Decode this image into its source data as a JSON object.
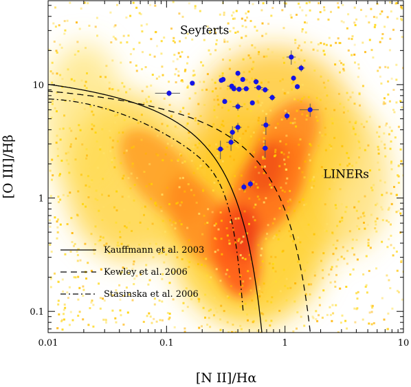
{
  "chart_data": {
    "type": "scatter",
    "xlabel": "[N II]/Hα",
    "ylabel": "[O III]/Hβ",
    "xscale": "log",
    "yscale": "log",
    "xlim": [
      0.01,
      10
    ],
    "ylim": [
      0.065,
      55
    ],
    "xticks": [
      {
        "value": 0.01,
        "label": "0.01"
      },
      {
        "value": 0.1,
        "label": "0.1"
      },
      {
        "value": 1,
        "label": "1"
      },
      {
        "value": 10,
        "label": "10"
      }
    ],
    "yticks": [
      {
        "value": 0.1,
        "label": "0.1"
      },
      {
        "value": 1,
        "label": "1"
      },
      {
        "value": 10,
        "label": "10"
      }
    ],
    "annotations": [
      {
        "text": "Seyferts",
        "x": 0.13,
        "y": 28
      },
      {
        "text": "LINERs",
        "x": 2.1,
        "y": 1.5
      }
    ],
    "background": "density map of emission-line galaxies (yellow to red)",
    "curves": [
      {
        "name": "Kauffmann et al. 2003",
        "style": "solid",
        "formula": "log y = 0.61/(log x - 0.05) + 1.3"
      },
      {
        "name": "Kewley et al. 2006",
        "style": "dashed",
        "formula": "log y = 0.61/(log x - 0.47) + 1.19"
      },
      {
        "name": "Stasinska et al. 2006",
        "style": "dash-dot",
        "formula": "log y = (-30.787 + 1.1358 t + 0.27297 t^2) tanh(5.7409 t) - 31.093, t = log x"
      }
    ],
    "series": [
      {
        "marker": "filled circle",
        "color": "#1414e6",
        "points": [
          {
            "x": 0.105,
            "y": 8.4,
            "xerr": 0.025,
            "yerr": 0.5
          },
          {
            "x": 0.165,
            "y": 10.3,
            "xerr": 0,
            "yerr": 0
          },
          {
            "x": 0.29,
            "y": 10.9,
            "xerr": 0,
            "yerr": 0
          },
          {
            "x": 0.3,
            "y": 11.1,
            "xerr": 0.01,
            "yerr": 0.3
          },
          {
            "x": 0.31,
            "y": 7.1,
            "xerr": 0.01,
            "yerr": 0.3
          },
          {
            "x": 0.355,
            "y": 9.7,
            "xerr": 0.03,
            "yerr": 0.4
          },
          {
            "x": 0.37,
            "y": 9.2,
            "xerr": 0.03,
            "yerr": 0.4
          },
          {
            "x": 0.4,
            "y": 12.6,
            "xerr": 0,
            "yerr": 0
          },
          {
            "x": 0.41,
            "y": 9.1,
            "xerr": 0.03,
            "yerr": 0.5
          },
          {
            "x": 0.4,
            "y": 6.4,
            "xerr": 0.04,
            "yerr": 0.5
          },
          {
            "x": 0.44,
            "y": 11.1,
            "xerr": 0,
            "yerr": 0
          },
          {
            "x": 0.47,
            "y": 9.2,
            "xerr": 0.03,
            "yerr": 0.4
          },
          {
            "x": 0.53,
            "y": 6.9,
            "xerr": 0.02,
            "yerr": 0.3
          },
          {
            "x": 0.57,
            "y": 10.6,
            "xerr": 0.03,
            "yerr": 0.6
          },
          {
            "x": 0.6,
            "y": 9.4,
            "xerr": 0.05,
            "yerr": 0.5
          },
          {
            "x": 0.68,
            "y": 9.0,
            "xerr": 0.05,
            "yerr": 0.5
          },
          {
            "x": 0.78,
            "y": 7.7,
            "xerr": 0.05,
            "yerr": 0.5
          },
          {
            "x": 0.69,
            "y": 4.4,
            "xerr": 0.06,
            "yerr": 0.8
          },
          {
            "x": 0.4,
            "y": 4.2,
            "xerr": 0.03,
            "yerr": 0.4
          },
          {
            "x": 0.36,
            "y": 3.8,
            "xerr": 0.02,
            "yerr": 0.5
          },
          {
            "x": 0.35,
            "y": 3.1,
            "xerr": 0.03,
            "yerr": 0.5
          },
          {
            "x": 0.285,
            "y": 2.7,
            "xerr": 0.02,
            "yerr": 0.5
          },
          {
            "x": 0.68,
            "y": 2.75,
            "xerr": 0.04,
            "yerr": 0.5
          },
          {
            "x": 0.45,
            "y": 1.25,
            "xerr": 0.02,
            "yerr": 0.1
          },
          {
            "x": 0.51,
            "y": 1.33,
            "xerr": 0.02,
            "yerr": 0.1
          },
          {
            "x": 1.13,
            "y": 17.5,
            "xerr": 0.1,
            "yerr": 2.5
          },
          {
            "x": 1.37,
            "y": 14.0,
            "xerr": 0.1,
            "yerr": 1.0
          },
          {
            "x": 1.18,
            "y": 11.4,
            "xerr": 0.05,
            "yerr": 0.6
          },
          {
            "x": 1.27,
            "y": 9.6,
            "xerr": 0.05,
            "yerr": 0.5
          },
          {
            "x": 1.04,
            "y": 5.3,
            "xerr": 0.05,
            "yerr": 0.4
          },
          {
            "x": 1.63,
            "y": 6.0,
            "xerr": 0.3,
            "yerr": 0.8
          }
        ]
      }
    ]
  }
}
